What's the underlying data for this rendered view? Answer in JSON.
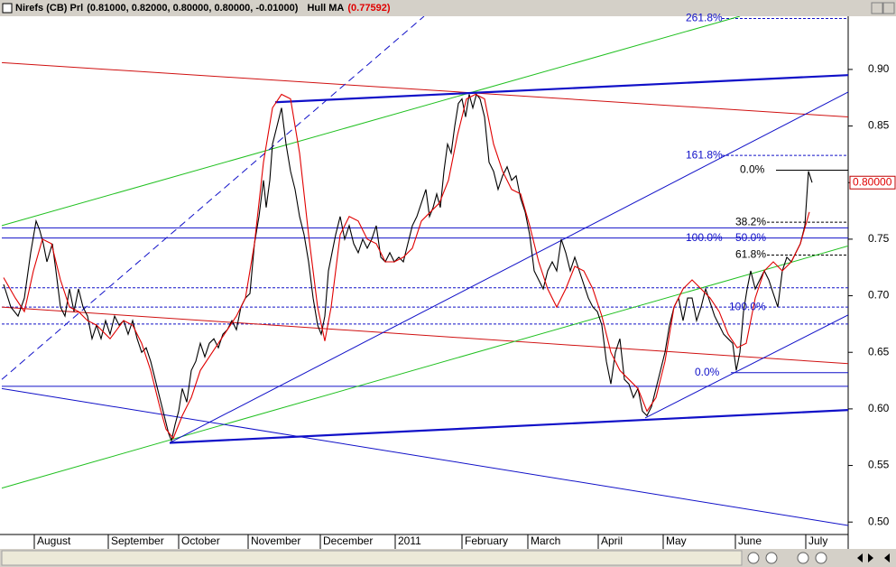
{
  "chart_data": {
    "type": "line",
    "xlim": [
      0,
      187.6
    ],
    "ylim": [
      0.489,
      0.947
    ],
    "xticks": [
      {
        "value": 7.2,
        "label": "August"
      },
      {
        "value": 23.6,
        "label": "September"
      },
      {
        "value": 39.2,
        "label": "October"
      },
      {
        "value": 54.6,
        "label": "November"
      },
      {
        "value": 70.6,
        "label": "December"
      },
      {
        "value": 87.2,
        "label": "2011"
      },
      {
        "value": 102,
        "label": "February"
      },
      {
        "value": 116.6,
        "label": "March"
      },
      {
        "value": 132.2,
        "label": "April"
      },
      {
        "value": 146.6,
        "label": "May"
      },
      {
        "value": 162.6,
        "label": "June"
      },
      {
        "value": 178.2,
        "label": "July"
      }
    ],
    "yticks": [
      {
        "value": 0.5,
        "label": "0.50"
      },
      {
        "value": 0.55,
        "label": "0.55"
      },
      {
        "value": 0.6,
        "label": "0.60"
      },
      {
        "value": 0.65,
        "label": "0.65"
      },
      {
        "value": 0.7,
        "label": "0.70"
      },
      {
        "value": 0.75,
        "label": "0.75"
      },
      {
        "value": 0.8,
        "label": "0.80"
      },
      {
        "value": 0.85,
        "label": "0.85"
      },
      {
        "value": 0.9,
        "label": "0.90"
      }
    ],
    "last_price": {
      "value": 0.8,
      "label": "0.80000"
    },
    "series": [
      {
        "name": "Nirefs (CB) Prl",
        "legend_values": "(0.81000, 0.82000, 0.80000, 0.80000, -0.01000)",
        "color": "#000000",
        "x": [
          0.4,
          2,
          3.6,
          5,
          6.4,
          7.6,
          8.4,
          9.2,
          10,
          11.2,
          12,
          13,
          14,
          15,
          16,
          17,
          18,
          19,
          20,
          21,
          22,
          23,
          24,
          25,
          26,
          27,
          28,
          29,
          30,
          31,
          32,
          33,
          34,
          35,
          36,
          37,
          37.6,
          38.4,
          39.2,
          40,
          41,
          42,
          43,
          44,
          45,
          46,
          47,
          48,
          49,
          50,
          51,
          52,
          53,
          54,
          55,
          56,
          57,
          58,
          58.6,
          59.4,
          60,
          61,
          62,
          63,
          64,
          65,
          66,
          67,
          68,
          69,
          70,
          70.8,
          71.6,
          72.4,
          73.2,
          74,
          75,
          76,
          77,
          78,
          79,
          80,
          81,
          82,
          83,
          84,
          85,
          86,
          87,
          88,
          89,
          90,
          91,
          92,
          93,
          94,
          94.8,
          95.6,
          96.4,
          97.2,
          98,
          98.8,
          99.6,
          100.4,
          101.2,
          102,
          102.8,
          103.6,
          104.4,
          105.2,
          106,
          107,
          108,
          109,
          110,
          111,
          112,
          113,
          114,
          115,
          116,
          117,
          118,
          119,
          120,
          121,
          122,
          123,
          124,
          125,
          126,
          127,
          128,
          129,
          130,
          131,
          132,
          133,
          134,
          135,
          136,
          137,
          138,
          139,
          140,
          141,
          142,
          143,
          144,
          145,
          146,
          147,
          148,
          149,
          150,
          151,
          152,
          153,
          154,
          155,
          156,
          157,
          158,
          159,
          160,
          161,
          162,
          162.8,
          163.6,
          164.4,
          165.2,
          166,
          167,
          168,
          169,
          170,
          171,
          172,
          173,
          174,
          175,
          176,
          177,
          178,
          178.8,
          179.6
        ],
        "values": [
          0.71,
          0.69,
          0.682,
          0.698,
          0.738,
          0.766,
          0.758,
          0.746,
          0.73,
          0.746,
          0.722,
          0.69,
          0.682,
          0.706,
          0.686,
          0.706,
          0.69,
          0.682,
          0.662,
          0.674,
          0.662,
          0.678,
          0.666,
          0.682,
          0.674,
          0.678,
          0.666,
          0.678,
          0.662,
          0.65,
          0.654,
          0.642,
          0.626,
          0.61,
          0.594,
          0.578,
          0.572,
          0.586,
          0.598,
          0.618,
          0.606,
          0.634,
          0.642,
          0.658,
          0.646,
          0.658,
          0.662,
          0.654,
          0.666,
          0.67,
          0.678,
          0.67,
          0.69,
          0.698,
          0.702,
          0.746,
          0.77,
          0.802,
          0.778,
          0.802,
          0.834,
          0.85,
          0.866,
          0.834,
          0.81,
          0.794,
          0.77,
          0.754,
          0.73,
          0.698,
          0.674,
          0.666,
          0.682,
          0.722,
          0.738,
          0.754,
          0.77,
          0.75,
          0.762,
          0.746,
          0.738,
          0.75,
          0.742,
          0.75,
          0.762,
          0.734,
          0.73,
          0.738,
          0.73,
          0.734,
          0.73,
          0.746,
          0.762,
          0.77,
          0.782,
          0.794,
          0.77,
          0.778,
          0.79,
          0.778,
          0.81,
          0.834,
          0.826,
          0.85,
          0.87,
          0.874,
          0.858,
          0.878,
          0.866,
          0.878,
          0.874,
          0.858,
          0.818,
          0.81,
          0.794,
          0.806,
          0.814,
          0.802,
          0.806,
          0.786,
          0.774,
          0.754,
          0.722,
          0.714,
          0.706,
          0.722,
          0.73,
          0.722,
          0.75,
          0.738,
          0.722,
          0.734,
          0.722,
          0.71,
          0.698,
          0.69,
          0.686,
          0.674,
          0.642,
          0.622,
          0.65,
          0.662,
          0.626,
          0.622,
          0.61,
          0.618,
          0.598,
          0.594,
          0.602,
          0.618,
          0.634,
          0.65,
          0.674,
          0.69,
          0.698,
          0.678,
          0.698,
          0.698,
          0.678,
          0.69,
          0.706,
          0.694,
          0.682,
          0.674,
          0.666,
          0.662,
          0.658,
          0.634,
          0.65,
          0.686,
          0.706,
          0.722,
          0.706,
          0.714,
          0.722,
          0.714,
          0.702,
          0.69,
          0.722,
          0.734,
          0.73,
          0.738,
          0.746,
          0.762,
          0.81,
          0.8
        ]
      },
      {
        "name": "Hull MA",
        "legend_values": "(0.77592)",
        "color": "#e00000",
        "x": [
          0.4,
          3,
          5,
          7,
          9,
          11,
          13,
          15,
          17,
          19,
          21,
          24,
          27,
          29,
          31,
          33,
          35,
          36.4,
          38,
          40,
          42,
          44,
          46,
          48,
          50,
          52,
          54,
          56,
          58,
          60,
          62,
          64,
          66,
          68,
          70,
          71.6,
          73,
          75,
          77,
          79,
          81,
          83,
          85,
          87,
          89,
          91,
          93,
          95,
          97,
          99,
          101,
          103,
          105,
          107,
          109,
          111,
          113,
          115,
          117,
          119,
          121,
          123,
          125,
          127,
          129,
          131,
          133,
          135,
          137,
          139,
          141,
          143,
          145,
          147,
          149,
          151,
          153,
          155,
          157,
          159,
          161,
          163,
          165,
          167,
          169,
          171,
          173,
          175,
          177,
          179
        ],
        "values": [
          0.716,
          0.698,
          0.686,
          0.722,
          0.75,
          0.746,
          0.714,
          0.69,
          0.686,
          0.678,
          0.674,
          0.662,
          0.678,
          0.674,
          0.658,
          0.634,
          0.602,
          0.582,
          0.574,
          0.594,
          0.61,
          0.634,
          0.646,
          0.658,
          0.67,
          0.682,
          0.698,
          0.746,
          0.818,
          0.866,
          0.878,
          0.874,
          0.826,
          0.754,
          0.69,
          0.66,
          0.69,
          0.754,
          0.77,
          0.766,
          0.75,
          0.746,
          0.73,
          0.73,
          0.734,
          0.742,
          0.766,
          0.774,
          0.782,
          0.802,
          0.842,
          0.874,
          0.878,
          0.874,
          0.834,
          0.81,
          0.794,
          0.79,
          0.762,
          0.73,
          0.706,
          0.69,
          0.706,
          0.726,
          0.722,
          0.706,
          0.682,
          0.65,
          0.634,
          0.626,
          0.618,
          0.598,
          0.61,
          0.642,
          0.69,
          0.706,
          0.714,
          0.706,
          0.698,
          0.686,
          0.666,
          0.654,
          0.658,
          0.698,
          0.722,
          0.73,
          0.722,
          0.73,
          0.746,
          0.774
        ]
      }
    ],
    "trendlines": [
      {
        "color": "#d01010",
        "bold": false,
        "dashed": false,
        "x": [
          0,
          187.6
        ],
        "y": [
          0.906,
          0.858
        ]
      },
      {
        "color": "#d01010",
        "bold": false,
        "dashed": false,
        "x": [
          0,
          187.6
        ],
        "y": [
          0.69,
          0.64
        ]
      },
      {
        "color": "#20c020",
        "bold": false,
        "dashed": false,
        "x": [
          0,
          163.6
        ],
        "y": [
          0.762,
          0.947
        ]
      },
      {
        "color": "#20c020",
        "bold": false,
        "dashed": false,
        "x": [
          0,
          187.6
        ],
        "y": [
          0.53,
          0.744
        ]
      },
      {
        "color": "#1010c8",
        "bold": true,
        "dashed": false,
        "x": [
          60.6,
          187.6
        ],
        "y": [
          0.871,
          0.895
        ]
      },
      {
        "color": "#1010c8",
        "bold": true,
        "dashed": false,
        "x": [
          37.2,
          187.6
        ],
        "y": [
          0.57,
          0.599
        ]
      },
      {
        "color": "#1010c8",
        "bold": false,
        "dashed": false,
        "x": [
          37.2,
          187.6
        ],
        "y": [
          0.57,
          0.88
        ]
      },
      {
        "color": "#1010c8",
        "bold": false,
        "dashed": false,
        "x": [
          0,
          187.6
        ],
        "y": [
          0.618,
          0.497
        ]
      },
      {
        "color": "#1010c8",
        "bold": false,
        "dashed": true,
        "x": [
          0,
          93.6
        ],
        "y": [
          0.626,
          0.947
        ]
      },
      {
        "color": "#1010c8",
        "bold": false,
        "dashed": false,
        "x": [
          142.6,
          187.6
        ],
        "y": [
          0.592,
          0.683
        ]
      }
    ],
    "levels": [
      {
        "value": 0.945,
        "x0": 159.6,
        "color": "#1010c8",
        "dashed": true,
        "labels": [
          {
            "text": "261.8%",
            "x": 151.6
          }
        ]
      },
      {
        "value": 0.824,
        "x0": 159.6,
        "color": "#1010c8",
        "dashed": true,
        "labels": [
          {
            "text": "161.8%",
            "x": 151.6
          }
        ]
      },
      {
        "value": 0.811,
        "x0": 171.6,
        "color": "#000000",
        "dashed": false,
        "labels": [
          {
            "text": "0.0%",
            "x": 163.6
          }
        ]
      },
      {
        "value": 0.765,
        "x0": 169.6,
        "color": "#000000",
        "dashed": true,
        "labels": [
          {
            "text": "38.2%",
            "x": 162.6
          }
        ]
      },
      {
        "value": 0.76,
        "x0": 0,
        "color": "#1010c8",
        "dashed": false,
        "labels": []
      },
      {
        "value": 0.751,
        "x0": 0,
        "color": "#1010c8",
        "dashed": false,
        "labels": [
          {
            "text": "100.0%",
            "x": 151.6
          },
          {
            "text": "50.0%",
            "x": 162.6
          }
        ]
      },
      {
        "value": 0.736,
        "x0": 169.6,
        "color": "#000000",
        "dashed": true,
        "labels": [
          {
            "text": "61.8%",
            "x": 162.6
          }
        ]
      },
      {
        "value": 0.707,
        "x0": 0,
        "color": "#1010c8",
        "dashed": true,
        "labels": []
      },
      {
        "value": 0.69,
        "x0": 0,
        "color": "#1010c8",
        "dashed": true,
        "labels": [
          {
            "text": "100.0%",
            "x": 161.2
          }
        ]
      },
      {
        "value": 0.675,
        "x0": 0,
        "color": "#1010c8",
        "dashed": true,
        "labels": []
      },
      {
        "value": 0.632,
        "x0": 161.6,
        "color": "#1010c8",
        "dashed": false,
        "labels": [
          {
            "text": "0.0%",
            "x": 153.6
          }
        ]
      },
      {
        "value": 0.62,
        "x0": 0,
        "color": "#1010c8",
        "dashed": false,
        "labels": []
      }
    ]
  }
}
